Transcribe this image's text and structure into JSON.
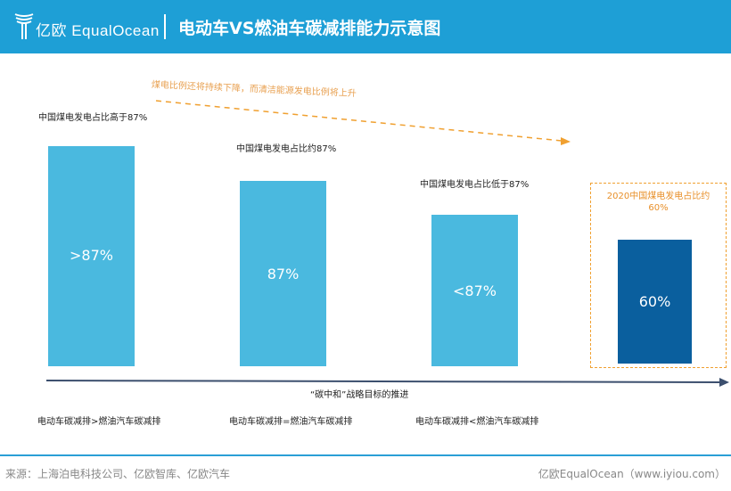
{
  "header": {
    "logo_text": "亿欧 EqualOcean",
    "title": "电动车VS燃油车碳减排能力示意图"
  },
  "trend_note": "煤电比例还将持续下降，而清洁能源发电比例将上升",
  "stages": [
    {
      "label": "中国煤电发电占比高于87%",
      "bar_value": ">87%",
      "share": 87,
      "comparison": "电动车碳减排>燃油汽车碳减排"
    },
    {
      "label": "中国煤电发电占比约87%",
      "bar_value": "87%",
      "share": 87,
      "comparison": "电动车碳减排=燃油汽车碳减排"
    },
    {
      "label": "中国煤电发电占比低于87%",
      "bar_value": "<87%",
      "share": 87,
      "comparison": "电动车碳减排<燃油汽车碳减排"
    },
    {
      "label": "2020中国煤电发电占比约60%",
      "bar_value": "60%",
      "share": 60
    }
  ],
  "axis_label": "“碳中和”战略目标的推进",
  "footer": {
    "source": "来源：上海泊电科技公司、亿欧智库、亿欧汽车",
    "brand": "亿欧EqualOcean（www.iyiou.com）"
  },
  "colors": {
    "header": "#1e9fd6",
    "bar": "#4ab9df",
    "bar_highlight": "#0a5f9e",
    "accent": "#f0a030"
  }
}
